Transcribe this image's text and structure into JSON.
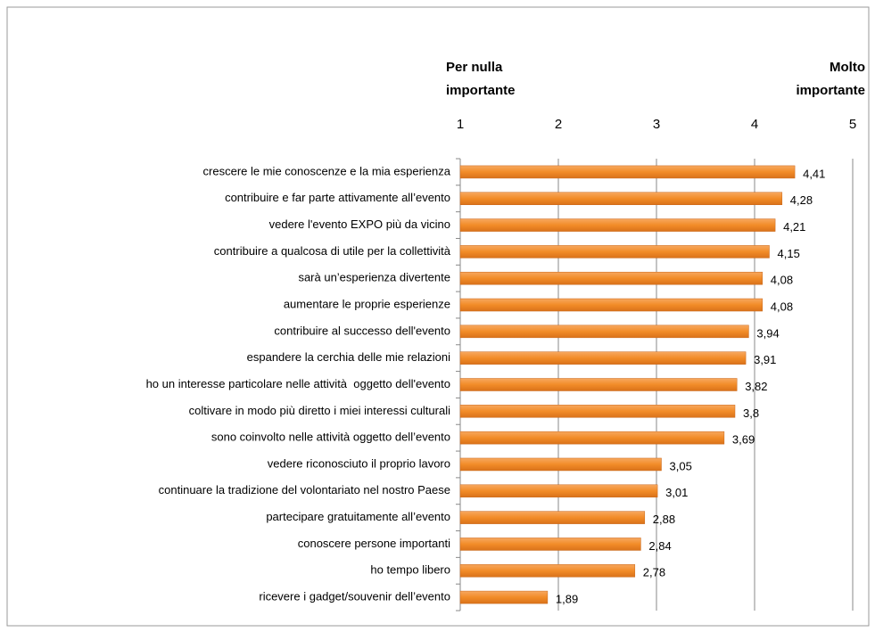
{
  "chart_data": {
    "type": "barh",
    "left_label": [
      "Per nulla",
      "importante"
    ],
    "right_label": [
      "Molto",
      "importante"
    ],
    "categories": [
      "crescere le mie conoscenze e la mia esperienza",
      "contribuire e far parte attivamente all’evento",
      "vedere l'evento EXPO più da vicino",
      "contribuire a qualcosa di utile per la collettività",
      "sarà un’esperienza divertente",
      "aumentare le proprie esperienze",
      "contribuire al successo dell'evento",
      "espandere la cerchia delle mie relazioni",
      "ho un interesse particolare nelle attività  oggetto dell'evento",
      "coltivare in modo più diretto i miei interessi culturali",
      "sono coinvolto nelle attività oggetto dell’evento",
      "vedere riconosciuto il proprio lavoro",
      "continuare la tradizione del volontariato nel nostro Paese",
      "partecipare gratuitamente all’evento",
      "conoscere persone importanti",
      "ho tempo libero",
      "ricevere i gadget/souvenir dell’evento"
    ],
    "values": [
      4.41,
      4.28,
      4.21,
      4.15,
      4.08,
      4.08,
      3.94,
      3.91,
      3.82,
      3.8,
      3.69,
      3.05,
      3.01,
      2.88,
      2.84,
      2.78,
      1.89
    ],
    "value_labels": [
      "4,41",
      "4,28",
      "4,21",
      "4,15",
      "4,08",
      "4,08",
      "3,94",
      "3,91",
      "3,82",
      "3,8",
      "3,69",
      "3,05",
      "3,01",
      "2,88",
      "2,84",
      "2,78",
      "1,89"
    ],
    "color": "#f28c28",
    "xlim": [
      1,
      5
    ],
    "xticks": [
      1,
      2,
      3,
      4,
      5
    ],
    "grid": true
  }
}
